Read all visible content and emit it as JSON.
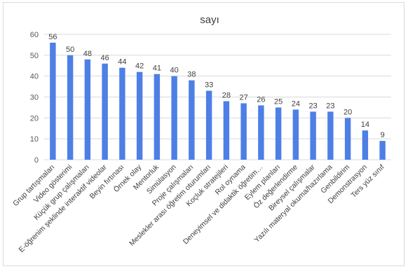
{
  "chart_data": {
    "type": "bar",
    "title": "sayı",
    "xlabel": "",
    "ylabel": "",
    "ylim": [
      0,
      60
    ],
    "yticks": [
      0,
      10,
      20,
      30,
      40,
      50,
      60
    ],
    "grid": true,
    "legend": "none",
    "bar_color": "#4d7fe6",
    "gridline_color": "#d9d9d9",
    "categories": [
      "Grup tartışmaları",
      "Video gösterimi",
      "Küçük grup çalışmaları",
      "E-öğrenim şeklinde interaktif videolar",
      "Beyin fırtınası",
      "Örnek olay",
      "Mentorluk",
      "Simülasyon",
      "Proje çalışmaları",
      "Meslekler arası öğretim oturumları",
      "Koçluk stratejileri",
      "Rol oynama",
      "Deneyimsel ve didaktik öğretim…",
      "Eylem planları",
      "Öz değerlendirme",
      "Bireysel çalışmalar",
      "Yazılı materyal okuma/hazırlama",
      "Genbildirim",
      "Demonstrasyon",
      "Ters yüz sınıf"
    ],
    "values": [
      56,
      50,
      48,
      46,
      44,
      42,
      41,
      40,
      38,
      33,
      28,
      27,
      26,
      25,
      24,
      23,
      23,
      20,
      14,
      9
    ]
  }
}
